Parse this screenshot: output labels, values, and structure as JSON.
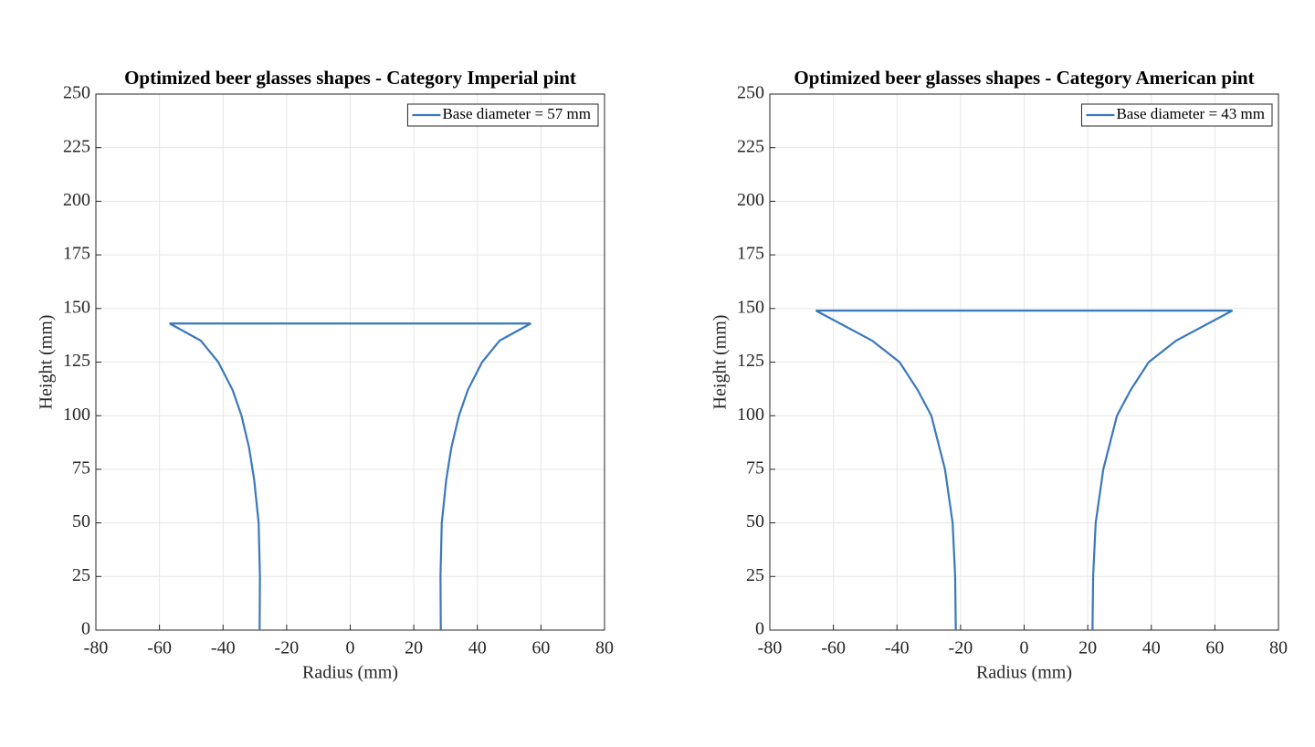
{
  "chart_data": [
    {
      "type": "line",
      "title": "Optimized beer glasses shapes - Category Imperial pint",
      "xlabel": "Radius (mm)",
      "ylabel": "Height (mm)",
      "xlim": [
        -80,
        80
      ],
      "ylim": [
        0,
        250
      ],
      "xticks": [
        -80,
        -60,
        -40,
        -20,
        0,
        20,
        40,
        60,
        80
      ],
      "yticks": [
        0,
        25,
        50,
        75,
        100,
        125,
        150,
        175,
        200,
        225,
        250
      ],
      "grid": true,
      "legend": "northeast",
      "series": [
        {
          "name": "Base diameter =  57 mm",
          "color": "#3a78bd",
          "x": [
            -28.5,
            -28.4,
            -28.8,
            -30.2,
            -31.8,
            -34.2,
            -37,
            -41.5,
            -47,
            -56.8,
            56.8,
            47,
            41.5,
            37,
            34.2,
            31.8,
            30.2,
            28.8,
            28.4,
            28.5
          ],
          "values": [
            0,
            25,
            50,
            70,
            85,
            100,
            112,
            125,
            135,
            143,
            143,
            135,
            125,
            112,
            100,
            85,
            70,
            50,
            25,
            0
          ]
        }
      ]
    },
    {
      "type": "line",
      "title": "Optimized beer glasses shapes - Category American pint",
      "xlabel": "Radius (mm)",
      "ylabel": "Height (mm)",
      "xlim": [
        -80,
        80
      ],
      "ylim": [
        0,
        250
      ],
      "xticks": [
        -80,
        -60,
        -40,
        -20,
        0,
        20,
        40,
        60,
        80
      ],
      "yticks": [
        0,
        25,
        50,
        75,
        100,
        125,
        150,
        175,
        200,
        225,
        250
      ],
      "grid": true,
      "legend": "northeast",
      "series": [
        {
          "name": "Base diameter =  43 mm",
          "color": "#3a78bd",
          "x": [
            -21.5,
            -21.7,
            -22.5,
            -24.9,
            -29.2,
            -33.5,
            -39.2,
            -47.8,
            -65.5,
            65.5,
            47.8,
            39.2,
            33.5,
            29.2,
            24.9,
            22.5,
            21.7,
            21.5
          ],
          "values": [
            0,
            25,
            50,
            75,
            100,
            112,
            125,
            135,
            149,
            149,
            135,
            125,
            112,
            100,
            75,
            50,
            25,
            0
          ]
        }
      ]
    }
  ]
}
